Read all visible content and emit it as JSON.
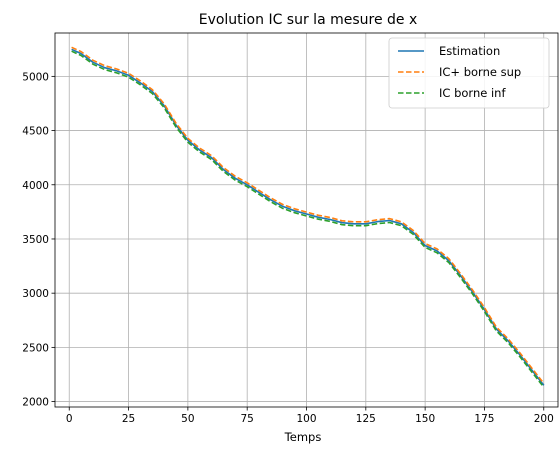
{
  "chart_data": {
    "type": "line",
    "title": "Evolution IC sur la mesure de x",
    "xlabel": "Temps",
    "ylabel": "",
    "xlim": [
      -6,
      206
    ],
    "ylim": [
      1950,
      5400
    ],
    "xticks": [
      0,
      25,
      50,
      75,
      100,
      125,
      150,
      175,
      200
    ],
    "yticks": [
      2000,
      2500,
      3000,
      3500,
      4000,
      4500,
      5000
    ],
    "grid": true,
    "legend": "top-right",
    "x": [
      1,
      5,
      10,
      15,
      20,
      25,
      30,
      35,
      40,
      45,
      50,
      55,
      60,
      65,
      70,
      75,
      80,
      85,
      90,
      95,
      100,
      105,
      110,
      115,
      120,
      125,
      130,
      135,
      140,
      145,
      150,
      155,
      160,
      165,
      170,
      175,
      180,
      185,
      190,
      195,
      200
    ],
    "series": [
      {
        "name": "Estimation",
        "color": "#1f77b4",
        "dash": "solid",
        "values": [
          5250,
          5210,
          5130,
          5080,
          5050,
          5010,
          4940,
          4860,
          4730,
          4550,
          4410,
          4320,
          4250,
          4140,
          4060,
          4000,
          3930,
          3860,
          3800,
          3760,
          3730,
          3700,
          3680,
          3650,
          3640,
          3640,
          3660,
          3670,
          3640,
          3560,
          3440,
          3390,
          3300,
          3160,
          3010,
          2850,
          2670,
          2560,
          2430,
          2290,
          2150
        ]
      },
      {
        "name": "IC+ borne sup",
        "color": "#ff7f0e",
        "dash": "dashed",
        "values": [
          5268,
          5228,
          5148,
          5098,
          5068,
          5028,
          4958,
          4878,
          4748,
          4568,
          4428,
          4338,
          4268,
          4158,
          4078,
          4018,
          3948,
          3878,
          3818,
          3778,
          3748,
          3718,
          3698,
          3668,
          3658,
          3658,
          3678,
          3688,
          3658,
          3578,
          3458,
          3408,
          3318,
          3178,
          3028,
          2868,
          2688,
          2578,
          2448,
          2308,
          2168
        ]
      },
      {
        "name": "IC borne inf",
        "color": "#2ca02c",
        "dash": "dashed",
        "values": [
          5232,
          5192,
          5112,
          5062,
          5032,
          4992,
          4922,
          4842,
          4712,
          4532,
          4392,
          4302,
          4232,
          4122,
          4042,
          3982,
          3912,
          3842,
          3782,
          3742,
          3712,
          3682,
          3662,
          3632,
          3622,
          3622,
          3642,
          3652,
          3622,
          3542,
          3422,
          3372,
          3282,
          3142,
          2992,
          2832,
          2652,
          2542,
          2412,
          2272,
          2132
        ]
      }
    ]
  }
}
